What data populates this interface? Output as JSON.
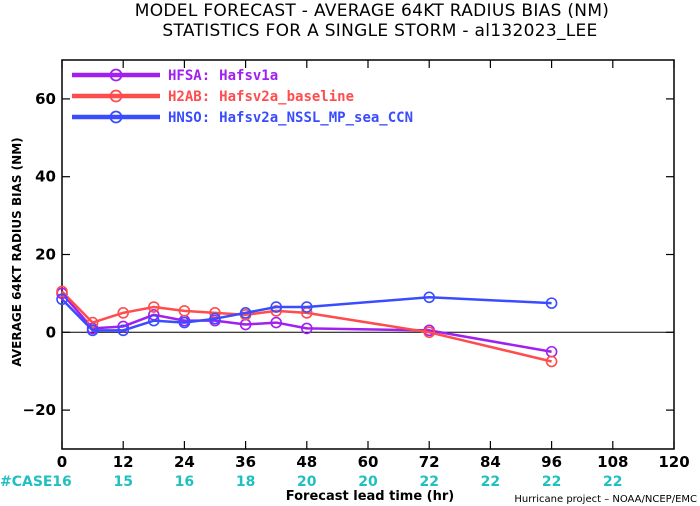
{
  "chart_data": {
    "type": "line",
    "title": "MODEL FORECAST - AVERAGE 64KT RADIUS BIAS (NM)",
    "subtitle": "STATISTICS FOR A SINGLE STORM - al132023_LEE",
    "xlabel": "Forecast lead time (hr)",
    "ylabel": "AVERAGE 64KT RADIUS BIAS (NM)",
    "xlim": [
      0,
      120
    ],
    "ylim": [
      -30,
      70
    ],
    "xticks": [
      0,
      12,
      24,
      36,
      48,
      60,
      72,
      84,
      96,
      108,
      120
    ],
    "yticks": [
      -20,
      0,
      20,
      40,
      60
    ],
    "ytick_labels": [
      "−20",
      "0",
      "20",
      "40",
      "60"
    ],
    "zero_line": true,
    "grid": false,
    "legend_placement": "top-left",
    "series": [
      {
        "name": "HFSA:",
        "label": "Hafsv1a",
        "color": "#a020f0",
        "x": [
          0,
          6,
          12,
          18,
          24,
          30,
          36,
          42,
          48,
          72,
          96
        ],
        "y": [
          10,
          1,
          1.5,
          4.5,
          3,
          3,
          2,
          2.5,
          1,
          0.5,
          -5
        ]
      },
      {
        "name": "H2AB:",
        "label": "Hafsv2a_baseline",
        "color": "#ff4c4c",
        "x": [
          0,
          6,
          12,
          18,
          24,
          30,
          36,
          42,
          48,
          72,
          96
        ],
        "y": [
          10.5,
          2.5,
          5,
          6.5,
          5.5,
          5,
          4.5,
          5.5,
          5,
          0,
          -7.5
        ]
      },
      {
        "name": "HNSO:",
        "label": "Hafsv2a_NSSL_MP_sea_CCN",
        "color": "#3a4cff",
        "x": [
          0,
          6,
          12,
          18,
          24,
          30,
          36,
          42,
          48,
          72,
          96
        ],
        "y": [
          8.5,
          0.5,
          0.5,
          3,
          2.5,
          3.5,
          5,
          6.5,
          6.5,
          9,
          7.5
        ]
      }
    ],
    "case_label": "#CASE",
    "case_color": "#20c0c0",
    "cases": [
      {
        "x": 0,
        "n": "16"
      },
      {
        "x": 12,
        "n": "15"
      },
      {
        "x": 24,
        "n": "16"
      },
      {
        "x": 36,
        "n": "18"
      },
      {
        "x": 48,
        "n": "20"
      },
      {
        "x": 60,
        "n": "20"
      },
      {
        "x": 72,
        "n": "22"
      },
      {
        "x": 84,
        "n": "22"
      },
      {
        "x": 96,
        "n": "22"
      },
      {
        "x": 108,
        "n": "22"
      }
    ],
    "credit": "Hurricane project – NOAA/NCEP/EMC"
  }
}
